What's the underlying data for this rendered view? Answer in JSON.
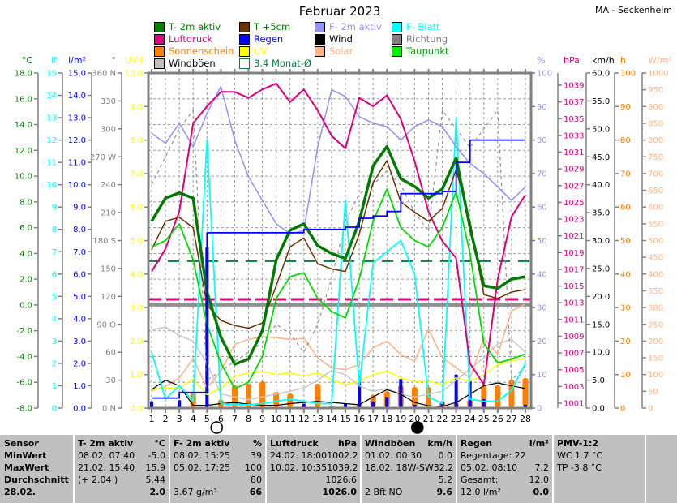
{
  "header": {
    "title": "Februar 2023",
    "station": "MA - Seckenheim"
  },
  "legend": [
    {
      "label": "T- 2m aktiv",
      "swatch": "#008000",
      "text_color": "#008000"
    },
    {
      "label": "T +5cm",
      "swatch": "#703000",
      "text_color": "#008000"
    },
    {
      "label": "F- 2m aktiv",
      "swatch": "#9191FF",
      "text_color": "#9191FF"
    },
    {
      "label": "F- Blatt",
      "swatch": "#00FFFF",
      "text_color": "#00FFFF"
    },
    {
      "label": "Luftdruck",
      "swatch": "#E0007D",
      "text_color": "#E0007D"
    },
    {
      "label": "Regen",
      "swatch": "#0000FF",
      "text_color": "#0000FF"
    },
    {
      "label": "Wind",
      "swatch": "#000000",
      "text_color": "#000000"
    },
    {
      "label": "Richtung",
      "swatch": "#808080",
      "text_color": "#808080"
    },
    {
      "label": "Sonnenschein",
      "swatch": "#FF8000",
      "text_color": "#FF8000"
    },
    {
      "label": "UV",
      "swatch": "#FFFF00",
      "text_color": "#FFFF00"
    },
    {
      "label": "Solar",
      "swatch": "#FFB285",
      "text_color": "#FFB285"
    },
    {
      "label": "Taupunkt",
      "swatch": "#00EE00",
      "text_color": "#00A000"
    },
    {
      "label": "Windböen",
      "swatch": "#C0C0C0",
      "text_color": "#000000"
    },
    {
      "label": "3.4 Monat-Ø",
      "swatch": "#FFFFFF",
      "swatch_border": "#008040",
      "text_color": "#008040"
    }
  ],
  "chart_data": {
    "type": "line",
    "title": "Februar 2023",
    "x": [
      1,
      2,
      3,
      4,
      5,
      6,
      7,
      8,
      9,
      10,
      11,
      12,
      13,
      14,
      15,
      16,
      17,
      18,
      19,
      20,
      21,
      22,
      23,
      24,
      25,
      26,
      27,
      28
    ],
    "grid": true,
    "left_axes": [
      {
        "id": "celsius",
        "unit": "°C",
        "color": "#008000",
        "labels": [
          "18.0",
          "16.0",
          "14.0",
          "12.0",
          "10.0",
          "8.0",
          "6.0",
          "4.0",
          "2.0",
          "0.0",
          "-2.0",
          "-4.0",
          "-6.0",
          "-8.0"
        ]
      },
      {
        "id": "lf",
        "unit": "lf",
        "color": "#00FFFF",
        "labels": [
          "15",
          "14",
          "13",
          "12",
          "11",
          "10",
          "9",
          "8",
          "7",
          "6",
          "5",
          "4",
          "3",
          "2",
          "1",
          "0"
        ]
      },
      {
        "id": "lm2",
        "unit": "l/m²",
        "color": "#0000FF",
        "labels": [
          "15.0",
          "14.0",
          "13.0",
          "12.0",
          "11.0",
          "10.0",
          "9.0",
          "8.0",
          "7.0",
          "6.0",
          "5.0",
          "4.0",
          "3.0",
          "2.0",
          "1.0",
          "0.0"
        ]
      },
      {
        "id": "dir",
        "unit": "°",
        "color": "#808080",
        "labels": [
          "360 N",
          "330",
          "300",
          "270 W",
          "240",
          "210",
          "180 S",
          "150",
          "120",
          "90  O",
          "60",
          "30",
          "0   N"
        ]
      },
      {
        "id": "uvi",
        "unit": "UV-I",
        "color": "#FFFF00",
        "labels": [
          "10.0",
          "9.0",
          "8.0",
          "7.0",
          "6.0",
          "5.0",
          "4.0",
          "3.0",
          "2.0",
          "1.0",
          "0.0"
        ]
      }
    ],
    "right_axes": [
      {
        "id": "pct",
        "unit": "%",
        "color": "#9191FF",
        "labels": [
          "100",
          "90",
          "80",
          "70",
          "60",
          "50",
          "40",
          "30",
          "20",
          "10",
          "0"
        ]
      },
      {
        "id": "hpa",
        "unit": "hPa",
        "color": "#E0007D",
        "labels": [
          "1039",
          "1037",
          "1035",
          "1033",
          "1031",
          "1029",
          "1027",
          "1025",
          "1023",
          "1021",
          "1019",
          "1017",
          "1015",
          "1013",
          "1011",
          "1009",
          "1007",
          "1005",
          "1003",
          "1001"
        ]
      },
      {
        "id": "kmh",
        "unit": "km/h",
        "color": "#000000",
        "labels": [
          "60.0",
          "55.0",
          "50.0",
          "45.0",
          "40.0",
          "35.0",
          "30.0",
          "25.0",
          "20.0",
          "15.0",
          "10.0",
          "5.0",
          "0.0"
        ]
      },
      {
        "id": "h",
        "unit": "h",
        "color": "#FF8000",
        "labels": [
          "100",
          "90",
          "80",
          "70",
          "60",
          "50",
          "40",
          "30",
          "20",
          "10",
          "0"
        ]
      },
      {
        "id": "wm2",
        "unit": "W/m²",
        "color": "#FFB285",
        "labels": [
          "1000",
          "950",
          "900",
          "850",
          "800",
          "750",
          "700",
          "650",
          "600",
          "550",
          "500",
          "450",
          "400",
          "350",
          "300",
          "250",
          "200",
          "150",
          "100",
          "50",
          "0"
        ]
      }
    ],
    "reference_lines": [
      {
        "name": "zero-celsius-line",
        "scale": "temp",
        "value": 0,
        "color": "#909090",
        "width": 4,
        "dash": ""
      },
      {
        "name": "monthly-avg-temp",
        "scale": "temp",
        "value": 3.4,
        "color": "#008040",
        "width": 2,
        "dash": "14,10"
      },
      {
        "name": "avg-pressure",
        "scale": "hpa",
        "value": 1013.6,
        "color": "#E0007D",
        "width": 3,
        "dash": "16,6"
      }
    ],
    "series": [
      {
        "name": "Solar",
        "color": "#FFB285",
        "scale": "wm2",
        "width": 1.5,
        "values": [
          51,
          65,
          90,
          148,
          60,
          110,
          190,
          205,
          213,
          210,
          205,
          208,
          150,
          120,
          115,
          130,
          180,
          200,
          160,
          140,
          235,
          150,
          120,
          90,
          210,
          160,
          290,
          310
        ]
      },
      {
        "name": "UV",
        "color": "#FFFF00",
        "scale": "uv",
        "width": 1.5,
        "values": [
          0.55,
          0.6,
          0.6,
          0.87,
          0.4,
          0.6,
          0.95,
          1.05,
          1.1,
          1.0,
          1.05,
          0.95,
          1.05,
          0.85,
          0.7,
          0.8,
          1.0,
          1.1,
          0.9,
          0.8,
          0.8,
          0.7,
          0.9,
          0.8,
          1.0,
          1.3,
          1.4,
          1.5
        ]
      },
      {
        "name": "Windböen",
        "color": "#C8C8C8",
        "scale": "kmh",
        "width": 1.5,
        "values": [
          14,
          14.5,
          13,
          12,
          8,
          2.5,
          2,
          1.5,
          2,
          2.5,
          3,
          3.6,
          5,
          6.7,
          6,
          4,
          3,
          3.5,
          2.5,
          2,
          2.5,
          3,
          5,
          7,
          9,
          11.5,
          12.3,
          10
        ]
      },
      {
        "name": "Richtung",
        "color": "#909090",
        "scale": "dir",
        "width": 1.2,
        "dash": "4,4",
        "values": [
          240,
          270,
          300,
          320,
          30,
          40,
          50,
          60,
          70,
          90,
          80,
          60,
          90,
          140,
          200,
          230,
          240,
          255,
          240,
          210,
          190,
          320,
          300,
          280,
          300,
          320,
          30,
          45
        ]
      },
      {
        "name": "Wind",
        "color": "#000000",
        "scale": "kmh",
        "width": 1.2,
        "values": [
          3.3,
          5,
          4,
          0.5,
          0.5,
          0.8,
          1,
          0.7,
          0.5,
          0.5,
          0.8,
          1,
          1.2,
          1,
          0.8,
          0.6,
          2,
          3.3,
          2.5,
          1,
          0.4,
          0.3,
          1,
          2.5,
          4,
          4.5,
          4,
          3.5
        ]
      },
      {
        "name": "F- Blatt",
        "color": "#00FFFF",
        "scale": "lf",
        "width": 1.8,
        "values": [
          2.5,
          0.4,
          1.0,
          0.3,
          12.0,
          0.2,
          0.15,
          0.15,
          0.2,
          0.3,
          0.4,
          0.3,
          0.2,
          0.2,
          9.3,
          1.0,
          6.5,
          7.0,
          7.5,
          6.0,
          0.5,
          0.2,
          13.0,
          0.4,
          0.3,
          0.3,
          0.8,
          2.0
        ]
      },
      {
        "name": "F- 2m aktiv",
        "color": "#9191FF",
        "scale": "pct",
        "width": 1.5,
        "values": [
          82,
          79,
          85,
          78,
          88,
          96,
          80,
          69,
          62,
          55,
          52,
          53,
          78,
          95,
          93,
          87,
          85,
          84,
          80,
          84,
          86,
          84,
          78,
          73,
          70,
          66,
          62,
          66
        ]
      },
      {
        "name": "Luftdruck",
        "color": "#E0007D",
        "scale": "hpa",
        "width": 2,
        "values": [
          1016.9,
          1019.6,
          1024.0,
          1034.5,
          1036.5,
          1038.2,
          1038.2,
          1037.5,
          1038.5,
          1039.2,
          1037.0,
          1038.5,
          1036.0,
          1033.0,
          1031.5,
          1037.5,
          1036.5,
          1037.8,
          1035.0,
          1030.0,
          1024.0,
          1020.5,
          1018.5,
          1006.0,
          1003.5,
          1016.0,
          1023.4,
          1026.0
        ]
      },
      {
        "name": "T +5cm",
        "color": "#703000",
        "scale": "temp",
        "width": 1.5,
        "values": [
          4.3,
          6.5,
          6.8,
          6.0,
          0.0,
          -1.2,
          -1.6,
          -1.8,
          -1.4,
          1.5,
          4.5,
          5.2,
          3.2,
          2.8,
          2.6,
          5.5,
          9.5,
          11.2,
          8.0,
          7.2,
          6.5,
          7.5,
          10.5,
          6.5,
          0.8,
          0.5,
          1.0,
          1.2
        ]
      },
      {
        "name": "Taupunkt",
        "color": "#00DD00",
        "scale": "temp",
        "width": 1.8,
        "values": [
          4.5,
          5.0,
          6.3,
          3.5,
          -1.5,
          -4.5,
          -6.5,
          -6.0,
          -4.0,
          0.5,
          2.2,
          2.5,
          0.5,
          -0.5,
          -1.0,
          2.0,
          6.5,
          9.0,
          6.0,
          5.0,
          4.5,
          6.0,
          8.8,
          4.0,
          -3.0,
          -4.5,
          -4.2,
          -3.8
        ]
      },
      {
        "name": "T- 2m aktiv",
        "color": "#007A00",
        "scale": "temp",
        "width": 3.5,
        "values": [
          6.5,
          8.3,
          8.7,
          8.3,
          1.0,
          -2.5,
          -4.6,
          -4.2,
          -2.0,
          3.5,
          5.8,
          6.3,
          4.6,
          4.0,
          3.6,
          6.5,
          10.8,
          12.3,
          9.8,
          9.2,
          8.3,
          9.0,
          11.4,
          6.0,
          1.5,
          1.3,
          2.0,
          2.2
        ]
      },
      {
        "name": "Regen Summe",
        "color": "#0000FF",
        "scale": "lf",
        "width": 1.8,
        "step": true,
        "values": [
          0.45,
          0.45,
          0.7,
          0.7,
          7.85,
          7.85,
          7.85,
          7.85,
          7.85,
          7.85,
          7.85,
          8.0,
          8.0,
          8.0,
          8.1,
          8.5,
          8.6,
          8.8,
          9.6,
          9.6,
          9.6,
          9.7,
          11.0,
          12.0,
          12.0,
          12.0,
          12.0,
          12.0
        ]
      }
    ],
    "bars": [
      {
        "name": "Sonnenschein",
        "color": "#FF8000",
        "scale": "pct",
        "width": 7,
        "values": [
          0,
          0,
          0.5,
          4.8,
          0,
          2.5,
          6.8,
          7.3,
          8.0,
          4.8,
          4.4,
          1.0,
          7.3,
          0.5,
          0.3,
          1.5,
          4.0,
          5.0,
          6.8,
          6.3,
          6.3,
          2.0,
          1.5,
          2.5,
          6.8,
          6.8,
          8.5,
          9.0
        ]
      },
      {
        "name": "Regen",
        "color": "#0000FF",
        "scale": "lf",
        "width": 4,
        "values": [
          0.3,
          0,
          0.35,
          0,
          7.2,
          0,
          0,
          0,
          0,
          0,
          0,
          0.2,
          0,
          0,
          0.2,
          1.4,
          0.3,
          0.5,
          1.3,
          0.15,
          0,
          0.3,
          1.5,
          1.2,
          0.4,
          0,
          0,
          0.15
        ]
      }
    ],
    "moon_markers": [
      {
        "day": 5.7,
        "phase": "full"
      },
      {
        "day": 20.2,
        "phase": "new"
      }
    ],
    "axis_ranges": {
      "temp": [
        -8,
        18
      ],
      "pct": [
        0,
        100
      ],
      "lf": [
        0,
        15
      ],
      "lm2": [
        0,
        15
      ],
      "hpa": [
        1001,
        1039
      ],
      "kmh": [
        0,
        60
      ],
      "h": [
        0,
        100
      ],
      "wm2": [
        0,
        1000
      ],
      "dir": [
        0,
        360
      ],
      "uv": [
        0,
        10
      ]
    }
  },
  "table": {
    "row_labels": [
      "Sensor",
      "MinWert",
      "MaxWert",
      "Durchschnitt",
      "28.02."
    ],
    "columns": [
      {
        "header": "T- 2m aktiv",
        "unit": "°C",
        "rows": [
          [
            "08.02.  07:40",
            "-5.0"
          ],
          [
            "21.02.  15:40",
            "15.9"
          ],
          [
            "(+ 2.04 )",
            "5.44"
          ],
          [
            "",
            "2.0"
          ]
        ]
      },
      {
        "header": "F- 2m aktiv",
        "unit": "%",
        "rows": [
          [
            "08.02.  15:25",
            "39"
          ],
          [
            "05.02.  17:25",
            "100"
          ],
          [
            "",
            "80"
          ],
          [
            "3.67 g/m³",
            "66"
          ]
        ]
      },
      {
        "header": "Luftdruck",
        "unit": "hPa",
        "rows": [
          [
            "24.02.  18:00",
            "1002.2"
          ],
          [
            "10.02.  10:35",
            "1039.2"
          ],
          [
            "",
            "1026.6"
          ],
          [
            "",
            "1026.0"
          ]
        ]
      },
      {
        "header": "Windböen",
        "unit": "km/h",
        "rows": [
          [
            "01.02.  00:30",
            "0.0"
          ],
          [
            "18.02.  18W-SW",
            "32.2"
          ],
          [
            "",
            "5.2"
          ],
          [
            "2 Bft NO",
            "9.6"
          ]
        ]
      },
      {
        "header": "Regen",
        "unit": "l/m²",
        "rows": [
          [
            "Regentage: 22",
            ""
          ],
          [
            "05.02.  08:10",
            "7.2"
          ],
          [
            "Gesamt:",
            "12.0"
          ],
          [
            "12.0 l/m²",
            "0.0"
          ]
        ]
      },
      {
        "header": "PMV-1:2",
        "unit": "",
        "rows": [
          [
            "WC 1.7 °C",
            ""
          ],
          [
            "TP -3.8 °C",
            ""
          ],
          [
            "",
            ""
          ],
          [
            "",
            ""
          ]
        ]
      }
    ]
  }
}
